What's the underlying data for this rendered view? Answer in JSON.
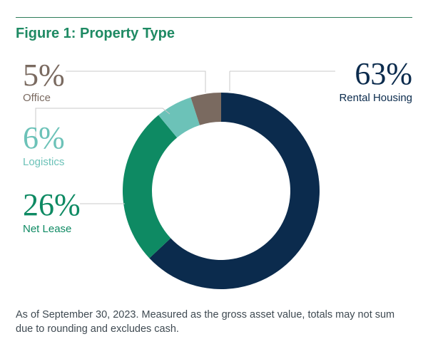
{
  "figure_title": "Figure 1:  Property Type",
  "footnote": "As of September 30, 2023. Measured as the gross asset value, totals may not sum due to rounding and excludes cash.",
  "chart_data": {
    "type": "pie",
    "style": "donut",
    "title": "Property Type",
    "categories": [
      "Rental Housing",
      "Net Lease",
      "Logistics",
      "Office"
    ],
    "values": [
      63,
      26,
      6,
      5
    ],
    "value_labels": [
      "63%",
      "26%",
      "6%",
      "5%"
    ],
    "colors": [
      "#0b2b4d",
      "#0e8a63",
      "#6cc2b8",
      "#7a6a60"
    ]
  }
}
